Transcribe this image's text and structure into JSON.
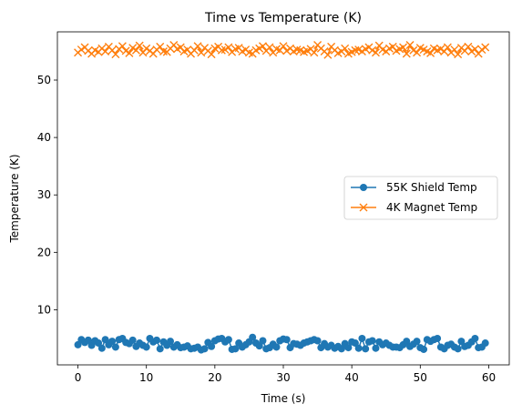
{
  "chart_data": {
    "type": "line",
    "title": "Time vs Temperature (K)",
    "xlabel": "Time (s)",
    "ylabel": "Temperature (K)",
    "xlim": [
      -3.0,
      63.0
    ],
    "ylim": [
      0.4,
      58.4
    ],
    "x_ticks": [
      0,
      10,
      20,
      30,
      40,
      50,
      60
    ],
    "y_ticks": [
      10,
      20,
      30,
      40,
      50
    ],
    "grid": false,
    "legend_position": "center-right",
    "series": [
      {
        "name": "55K Shield Temp",
        "color": "#1f77b4",
        "marker": "circle",
        "x": [
          0.0,
          0.5,
          1.0,
          1.5,
          2.0,
          2.5,
          3.0,
          3.5,
          4.0,
          4.5,
          5.0,
          5.5,
          6.0,
          6.5,
          7.0,
          7.5,
          8.0,
          8.5,
          9.0,
          9.5,
          10.0,
          10.5,
          11.0,
          11.5,
          12.0,
          12.5,
          13.0,
          13.5,
          14.0,
          14.5,
          15.0,
          15.5,
          16.0,
          16.5,
          17.0,
          17.5,
          18.0,
          18.5,
          19.0,
          19.5,
          20.0,
          20.5,
          21.0,
          21.5,
          22.0,
          22.5,
          23.0,
          23.5,
          24.0,
          24.5,
          25.0,
          25.5,
          26.0,
          26.5,
          27.0,
          27.5,
          28.0,
          28.5,
          29.0,
          29.5,
          30.0,
          30.5,
          31.0,
          31.5,
          32.0,
          32.5,
          33.0,
          33.5,
          34.0,
          34.5,
          35.0,
          35.5,
          36.0,
          36.5,
          37.0,
          37.5,
          38.0,
          38.5,
          39.0,
          39.5,
          40.0,
          40.5,
          41.0,
          41.5,
          42.0,
          42.5,
          43.0,
          43.5,
          44.0,
          44.5,
          45.0,
          45.5,
          46.0,
          46.5,
          47.0,
          47.5,
          48.0,
          48.5,
          49.0,
          49.5,
          50.0,
          50.5,
          51.0,
          51.5,
          52.0,
          52.5,
          53.0,
          53.5,
          54.0,
          54.5,
          55.0,
          55.5,
          56.0,
          56.5,
          57.0,
          57.5,
          58.0,
          58.5,
          59.0,
          59.5
        ],
        "values": [
          3.9,
          4.8,
          4.3,
          4.7,
          3.8,
          4.6,
          4.2,
          3.3,
          4.8,
          3.9,
          4.5,
          3.5,
          4.8,
          5.0,
          4.3,
          4.1,
          4.7,
          3.6,
          4.2,
          3.8,
          3.5,
          5.0,
          4.4,
          4.7,
          3.2,
          4.4,
          3.8,
          4.5,
          3.5,
          3.9,
          3.4,
          3.5,
          3.7,
          3.2,
          3.3,
          3.5,
          3.0,
          3.2,
          4.3,
          3.6,
          4.6,
          4.9,
          5.0,
          4.4,
          4.8,
          3.1,
          3.2,
          4.2,
          3.5,
          3.9,
          4.4,
          5.2,
          4.2,
          3.7,
          4.6,
          3.2,
          3.4,
          4.0,
          3.5,
          4.6,
          4.9,
          4.8,
          3.4,
          4.1,
          4.0,
          3.8,
          4.2,
          4.4,
          4.6,
          4.8,
          4.6,
          3.4,
          4.1,
          3.5,
          3.8,
          3.3,
          3.6,
          3.2,
          4.1,
          3.4,
          4.4,
          4.2,
          3.3,
          5.0,
          3.2,
          4.4,
          4.6,
          3.3,
          4.4,
          3.9,
          4.2,
          3.8,
          3.5,
          3.5,
          3.4,
          3.9,
          4.5,
          3.6,
          4.0,
          4.5,
          3.4,
          3.1,
          4.8,
          4.5,
          4.8,
          5.0,
          3.5,
          3.2,
          3.8,
          4.0,
          3.5,
          3.2,
          4.5,
          3.6,
          3.8,
          4.4,
          5.0,
          3.4,
          3.5,
          4.2
        ]
      },
      {
        "name": "4K Magnet Temp",
        "color": "#ff7f0e",
        "marker": "x",
        "x": [
          0.0,
          0.5,
          1.0,
          1.5,
          2.0,
          2.5,
          3.0,
          3.5,
          4.0,
          4.5,
          5.0,
          5.5,
          6.0,
          6.5,
          7.0,
          7.5,
          8.0,
          8.5,
          9.0,
          9.5,
          10.0,
          10.5,
          11.0,
          11.5,
          12.0,
          12.5,
          13.0,
          13.5,
          14.0,
          14.5,
          15.0,
          15.5,
          16.0,
          16.5,
          17.0,
          17.5,
          18.0,
          18.5,
          19.0,
          19.5,
          20.0,
          20.5,
          21.0,
          21.5,
          22.0,
          22.5,
          23.0,
          23.5,
          24.0,
          24.5,
          25.0,
          25.5,
          26.0,
          26.5,
          27.0,
          27.5,
          28.0,
          28.5,
          29.0,
          29.5,
          30.0,
          30.5,
          31.0,
          31.5,
          32.0,
          32.5,
          33.0,
          33.5,
          34.0,
          34.5,
          35.0,
          35.5,
          36.0,
          36.5,
          37.0,
          37.5,
          38.0,
          38.5,
          39.0,
          39.5,
          40.0,
          40.5,
          41.0,
          41.5,
          42.0,
          42.5,
          43.0,
          43.5,
          44.0,
          44.5,
          45.0,
          45.5,
          46.0,
          46.5,
          47.0,
          47.5,
          48.0,
          48.5,
          49.0,
          49.5,
          50.0,
          50.5,
          51.0,
          51.5,
          52.0,
          52.5,
          53.0,
          53.5,
          54.0,
          54.5,
          55.0,
          55.5,
          56.0,
          56.5,
          57.0,
          57.5,
          58.0,
          58.5,
          59.0,
          59.5
        ],
        "values": [
          54.8,
          55.3,
          55.7,
          55.1,
          54.6,
          55.2,
          54.9,
          55.5,
          55.0,
          55.8,
          55.2,
          54.5,
          55.4,
          55.9,
          55.1,
          54.7,
          55.6,
          55.2,
          56.0,
          54.8,
          55.5,
          55.1,
          54.6,
          55.3,
          55.8,
          55.0,
          54.9,
          55.5,
          56.1,
          55.4,
          55.7,
          55.0,
          55.3,
          54.6,
          55.2,
          55.9,
          54.8,
          55.6,
          55.1,
          54.5,
          55.5,
          55.8,
          55.2,
          55.3,
          55.7,
          54.9,
          55.4,
          55.6,
          55.0,
          55.3,
          54.8,
          54.6,
          55.2,
          55.5,
          55.9,
          55.1,
          55.7,
          54.8,
          55.4,
          55.2,
          55.9,
          55.1,
          55.5,
          55.0,
          55.3,
          55.2,
          54.9,
          55.1,
          55.4,
          54.8,
          56.1,
          55.5,
          55.0,
          54.4,
          55.8,
          55.2,
          54.7,
          55.0,
          55.5,
          54.6,
          54.9,
          55.2,
          55.3,
          55.0,
          55.4,
          55.7,
          55.2,
          54.8,
          56.0,
          55.3,
          55.0,
          55.5,
          55.8,
          55.1,
          55.4,
          55.7,
          54.6,
          56.1,
          55.2,
          54.8,
          55.6,
          55.3,
          55.0,
          54.7,
          55.5,
          55.2,
          55.4,
          55.0,
          55.7,
          54.8,
          55.3,
          54.5,
          55.6,
          55.1,
          55.8,
          55.0,
          55.4,
          54.6,
          55.3,
          55.7
        ]
      }
    ]
  }
}
